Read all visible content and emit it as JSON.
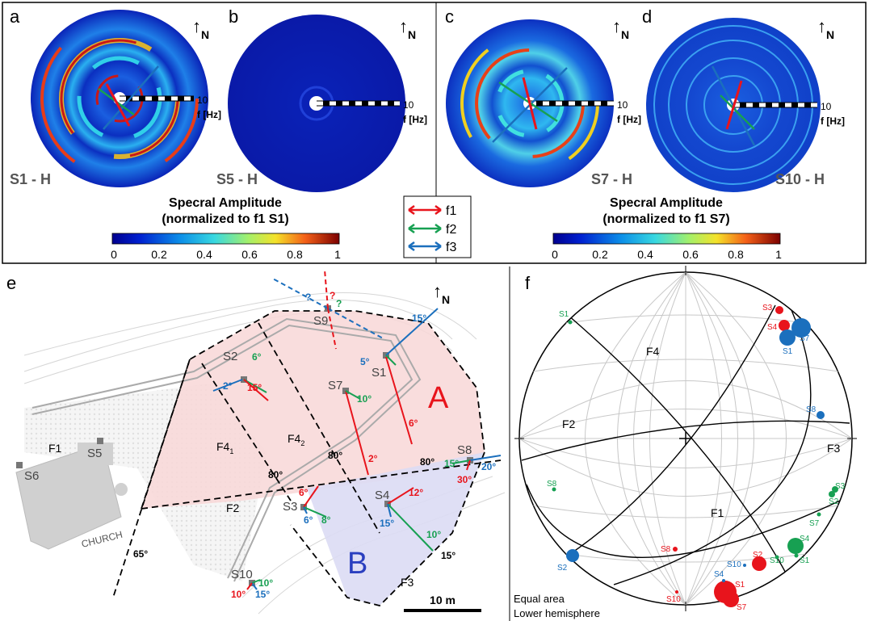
{
  "north_label": "N",
  "top": {
    "panels": [
      {
        "letter": "a",
        "station": "S1",
        "comp": "H"
      },
      {
        "letter": "b",
        "station": "S5",
        "comp": "H"
      },
      {
        "letter": "c",
        "station": "S7",
        "comp": "H"
      },
      {
        "letter": "d",
        "station": "S10",
        "comp": "H"
      }
    ],
    "scale_max": "10",
    "scale_unit": "f [Hz]",
    "dash": " - ",
    "colorbars": [
      {
        "title1": "Specral Amplitude",
        "title2": "(normalized to f1 S1)",
        "ticks": [
          "0",
          "0.2",
          "0.4",
          "0.6",
          "0.8",
          "1"
        ]
      },
      {
        "title1": "Specral Amplitude",
        "title2": "(normalized to f1 S7)",
        "ticks": [
          "0",
          "0.2",
          "0.4",
          "0.6",
          "0.8",
          "1"
        ]
      }
    ],
    "legend": [
      {
        "label": "f1",
        "color": "#e8141c"
      },
      {
        "label": "f2",
        "color": "#17a052"
      },
      {
        "label": "f3",
        "color": "#1b6fbd"
      }
    ]
  },
  "map": {
    "letter": "e",
    "zone_a": "A",
    "zone_b": "B",
    "church": "CHURCH",
    "scale_bar": "10 m",
    "faults": {
      "f1": "F1",
      "f2": "F2",
      "f3": "F3",
      "f4": "F4"
    },
    "f4_subs": [
      "1",
      "2"
    ],
    "stations": [
      "S1",
      "S2",
      "S3",
      "S4",
      "S5",
      "S6",
      "S7",
      "S8",
      "S9",
      "S10"
    ],
    "angles": {
      "s2_f2": "6°",
      "s2_f3": "2°",
      "s2_f1": "15°",
      "s1_f3a": "15°",
      "s1_f3b": "5°",
      "s1_f1": "6°",
      "s7_f2": "10°",
      "s7_f1": "2°",
      "s8_f2": "15°",
      "s8_f3": "20°",
      "s8_f1": "30°",
      "s3_f1": "6°",
      "s3_f3": "6°",
      "s3_f2": "8°",
      "s4_f1": "12°",
      "s4_f3": "15°",
      "s4_f2": "10°",
      "s10_f2": "10°",
      "s10_f1": "10°",
      "s10_f3": "15°",
      "s9_q": "?"
    },
    "dips": {
      "f4_1": "80°",
      "f4_2": "80°",
      "f2": "80°",
      "f1": "65°",
      "f3": "15°"
    }
  },
  "stereonet": {
    "letter": "f",
    "note1": "Equal area",
    "note2": "Lower hemisphere",
    "planes": {
      "f1": "F1",
      "f2": "F2",
      "f3": "F3",
      "f4": "F4"
    },
    "points_red": [
      "S3",
      "S4",
      "S8",
      "S2",
      "S1",
      "S10",
      "S7"
    ],
    "points_green": [
      "S1",
      "S8",
      "S3",
      "S2",
      "S7",
      "S4",
      "S10",
      "S1"
    ],
    "points_blue": [
      "S7",
      "S1",
      "S8",
      "S2",
      "S10",
      "S4"
    ]
  }
}
